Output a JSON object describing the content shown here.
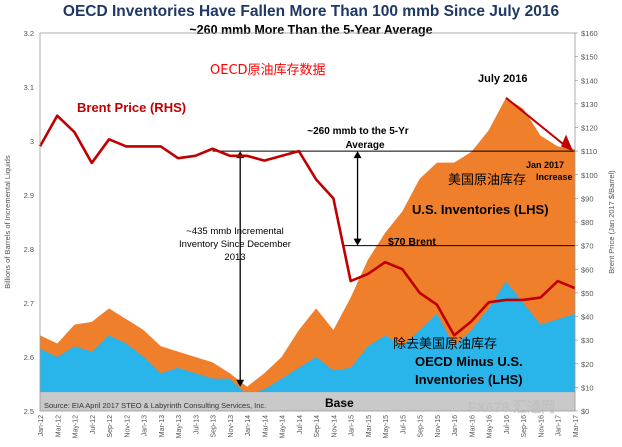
{
  "title": "OECD Inventories Have Fallen More Than 100 mmb Since July 2016",
  "subtitle": "~260 mmb More Than the 5-Year Average",
  "watermark_cn": "OECD原油库存数据",
  "source": "Source: EIA April 2017 STEO & Labyrinth Consulting Services, Inc.",
  "base_label": "Base",
  "footer_watermark": "FX678 汇通网",
  "colors": {
    "us_inventories": "#f07f2c",
    "oecd_minus_us": "#29b4ea",
    "base": "#c9c9c9",
    "brent": "#c00000",
    "title": "#1f3864",
    "annotation_cn": "#ff0000"
  },
  "chart_data": {
    "type": "area",
    "xlabel": "",
    "ylabel": "Billions of Barrels of Incremental Liquids",
    "ylabel_right": "Brent Price (Jan 2017 $/Barrel)",
    "ylim": [
      2.5,
      3.2
    ],
    "ylim_right": [
      0,
      160
    ],
    "y_ticks": [
      "2.5",
      "2.6",
      "2.7",
      "2.8",
      "2.9",
      "3",
      "3.1",
      "3.2"
    ],
    "y_ticks_right": [
      "$0",
      "$10",
      "$20",
      "$30",
      "$40",
      "$50",
      "$60",
      "$70",
      "$80",
      "$90",
      "$100",
      "$110",
      "$120",
      "$130",
      "$140",
      "$150",
      "$160"
    ],
    "categories": [
      "Jan-12",
      "Mar-12",
      "May-12",
      "Jul-12",
      "Sep-12",
      "Nov-12",
      "Jan-13",
      "Mar-13",
      "May-13",
      "Jul-13",
      "Sep-13",
      "Nov-13",
      "Jan-14",
      "Mar-14",
      "May-14",
      "Jul-14",
      "Sep-14",
      "Nov-14",
      "Jan-15",
      "Mar-15",
      "May-15",
      "Jul-15",
      "Sep-15",
      "Nov-15",
      "Jan-16",
      "Mar-16",
      "May-16",
      "Jul-16",
      "Sep-16",
      "Nov-16",
      "Jan-17",
      "Mar-17"
    ],
    "series": [
      {
        "name": "OECD Minus U.S. Inventories (LHS)",
        "values": [
          2.615,
          2.6,
          2.62,
          2.61,
          2.64,
          2.625,
          2.6,
          2.57,
          2.58,
          2.57,
          2.56,
          2.56,
          2.53,
          2.54,
          2.56,
          2.58,
          2.6,
          2.575,
          2.58,
          2.62,
          2.64,
          2.62,
          2.65,
          2.68,
          2.62,
          2.65,
          2.69,
          2.74,
          2.7,
          2.66,
          2.67,
          2.68
        ]
      },
      {
        "name": "U.S. Inventories (LHS)",
        "values": [
          2.64,
          2.625,
          2.66,
          2.665,
          2.69,
          2.67,
          2.65,
          2.62,
          2.61,
          2.6,
          2.59,
          2.57,
          2.545,
          2.57,
          2.6,
          2.65,
          2.69,
          2.65,
          2.71,
          2.78,
          2.83,
          2.87,
          2.93,
          2.96,
          2.96,
          2.98,
          3.02,
          3.08,
          3.06,
          3.01,
          2.99,
          2.985
        ]
      },
      {
        "name": "Brent Price (RHS)",
        "axis": "right",
        "values": [
          112,
          125,
          118,
          105,
          115,
          112,
          112,
          112,
          107,
          108,
          111,
          108,
          108,
          106,
          108,
          110,
          98,
          90,
          55,
          58,
          63,
          60,
          50,
          45,
          32,
          38,
          46,
          47,
          47,
          48,
          55,
          52
        ]
      }
    ],
    "reference_lines": [
      {
        "label": "~260 mmb to the 5-Yr Average",
        "value": 110,
        "axis": "right"
      },
      {
        "label": "$70 Brent",
        "value": 70,
        "axis": "right"
      }
    ],
    "annotations": [
      {
        "text": "Brent Price (RHS)"
      },
      {
        "text": "U.S. Inventories (LHS)"
      },
      {
        "text": "OECD Minus U.S. Inventories (LHS)"
      },
      {
        "text": "~435 mmb Incremental Inventory Since December 2013"
      },
      {
        "text": "~260 mmb to the 5-Yr Average"
      },
      {
        "text": "$70 Brent"
      },
      {
        "text": "July 2016"
      },
      {
        "text": "Jan 2017 Increase"
      },
      {
        "text": "美国原油库存"
      },
      {
        "text": "除去美国原油库存"
      }
    ],
    "grid": false,
    "legend": "none"
  }
}
